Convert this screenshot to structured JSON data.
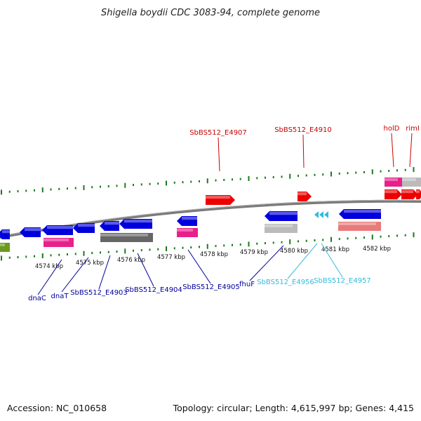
{
  "title": "Shigella boydii CDC 3083-94, complete genome",
  "footer": {
    "accession": "Accession: NC_010658",
    "summary": "Topology: circular; Length: 4,615,997 bp; Genes: 4,415"
  },
  "colors": {
    "tick": "#1a7a1a",
    "backbone": "#808080",
    "forward_label": "#cc0000",
    "reverse_label": "#000099",
    "rna_label": "#33bbdd"
  },
  "kbp_labels": [
    "4574 kbp",
    "4575 kbp",
    "4576 kbp",
    "4577 kbp",
    "4578 kbp",
    "4579 kbp",
    "4580 kbp",
    "4581 kbp",
    "4582 kbp"
  ],
  "top_labels": [
    "SbBS512_E4907",
    "SbBS512_E4910",
    "holD",
    "rimI"
  ],
  "bottom_labels": [
    "dnaC",
    "dnaT",
    "SbBS512_E4903",
    "SbBS512_E4904",
    "SbBS512_E4905",
    "fhuF",
    "SbBS512_E4956",
    "SbBS512_E4957"
  ]
}
